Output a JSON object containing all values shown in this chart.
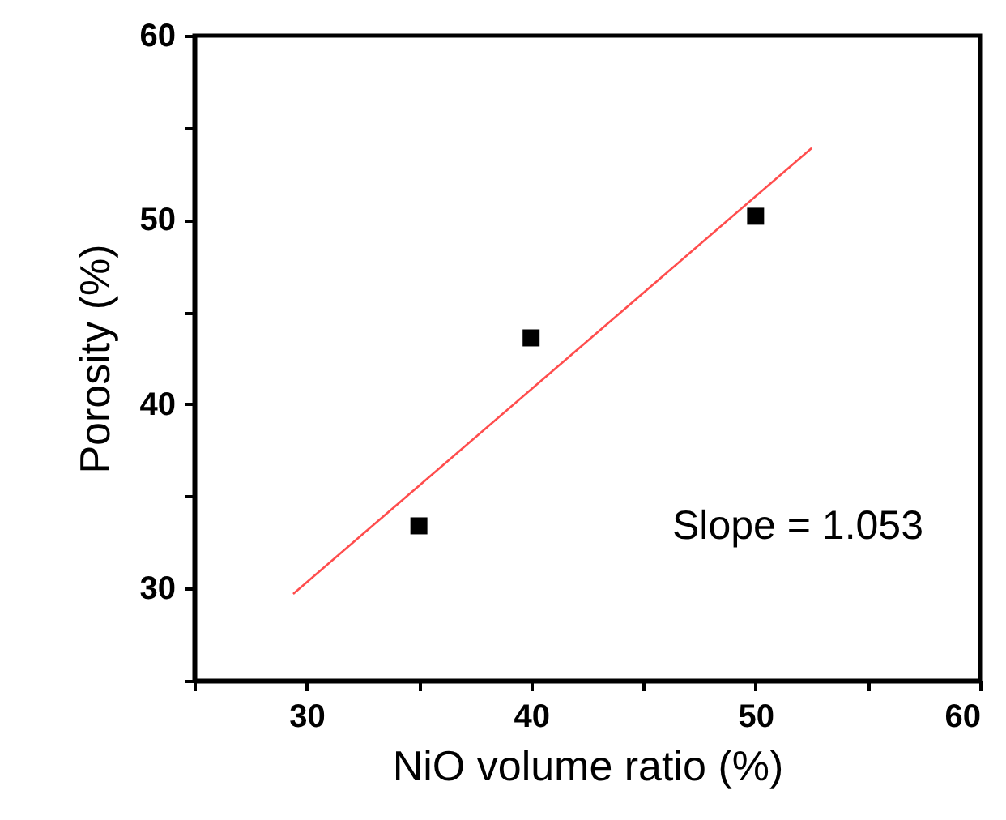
{
  "chart_data": {
    "type": "scatter",
    "xlabel": "NiO volume ratio (%)",
    "ylabel": "Porosity (%)",
    "annotations": [
      "Slope = 1.053"
    ],
    "series": [
      {
        "color": "#000000",
        "marker": "square",
        "x": [
          35,
          40,
          50
        ],
        "values": [
          33.4,
          43.6,
          50.2
        ]
      },
      {
        "type": "line",
        "color": "#ff4d4d",
        "marker": "none",
        "x": [
          29.4,
          52.5
        ],
        "values": [
          29.7,
          53.9
        ]
      }
    ],
    "xlim": [
      25,
      60
    ],
    "xticks": [
      {
        "value": 25,
        "label": null
      },
      30,
      {
        "value": 35,
        "label": null
      },
      40,
      {
        "value": 45,
        "label": null
      },
      50,
      {
        "value": 55,
        "label": null
      },
      60
    ],
    "ylim": [
      25,
      60
    ],
    "yticks": [
      {
        "value": 25,
        "label": null
      },
      30,
      {
        "value": 35,
        "label": null
      },
      40,
      {
        "value": 45,
        "label": null
      },
      50,
      {
        "value": 55,
        "label": null
      },
      60
    ],
    "grid": false
  }
}
